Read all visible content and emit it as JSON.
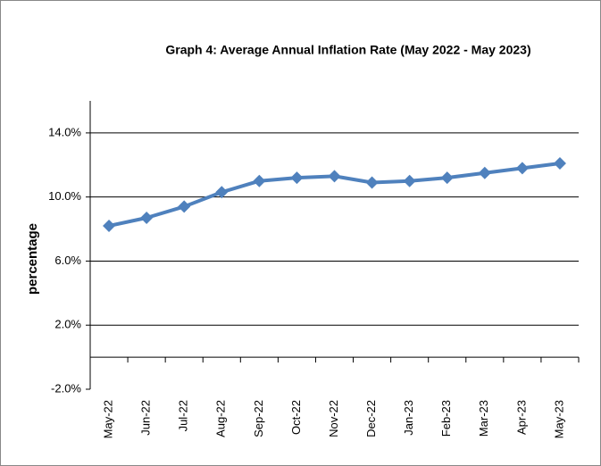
{
  "chart_data": {
    "type": "line",
    "title": "Graph 4: Average Annual Inflation Rate (May 2022 - May 2023)",
    "y_label": "percentage",
    "categories": [
      "May-22",
      "Jun-22",
      "Jul-22",
      "Aug-22",
      "Sep-22",
      "Oct-22",
      "Nov-22",
      "Dec-22",
      "Jan-23",
      "Feb-23",
      "Mar-23",
      "Apr-23",
      "May-23"
    ],
    "series": [
      {
        "name": "Average Annual Inflation Rate",
        "color": "#4f81bd",
        "values": [
          8.2,
          8.7,
          9.4,
          10.3,
          11.0,
          11.2,
          11.3,
          10.9,
          11.0,
          11.2,
          11.5,
          11.8,
          12.1
        ]
      }
    ],
    "ylim": [
      -2,
      16
    ],
    "yticks": [
      {
        "value": -2,
        "label": "-2.0%"
      },
      {
        "value": 2,
        "label": "2.0%"
      },
      {
        "value": 6,
        "label": "6.0%"
      },
      {
        "value": 10,
        "label": "10.0%"
      },
      {
        "value": 14,
        "label": "14.0%"
      }
    ],
    "grid": true
  }
}
